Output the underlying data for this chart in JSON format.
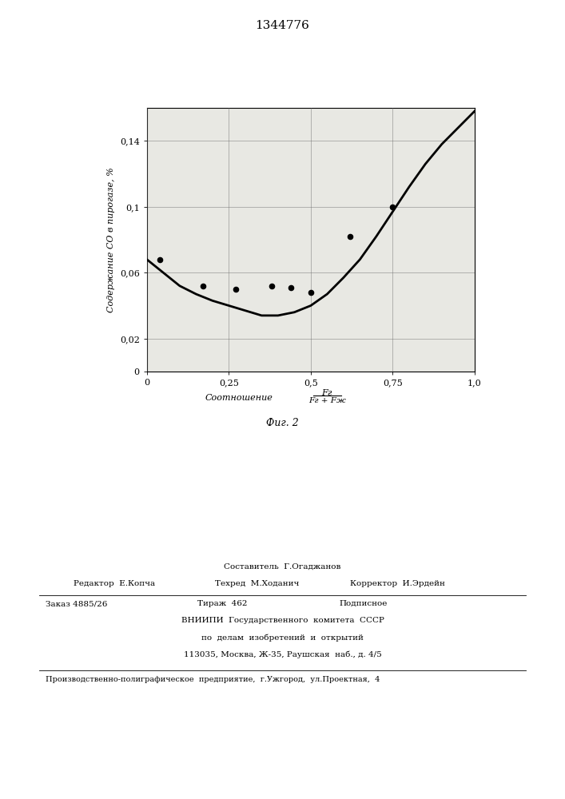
{
  "title": "1344776",
  "fig_caption": "Фиг. 2",
  "xlabel_word": "Соотношение",
  "xlabel_fraction_top": "Fг",
  "xlabel_fraction_bot": "Fг + Fж",
  "ylabel": "Содержание СО в пирогазе, %",
  "xlim": [
    0,
    1.0
  ],
  "ylim": [
    0,
    0.16
  ],
  "xticks": [
    0,
    0.25,
    0.5,
    0.75,
    1.0
  ],
  "xtick_labels": [
    "0",
    "0,25",
    "0,5",
    "0,75",
    "1,0"
  ],
  "yticks": [
    0,
    0.02,
    0.06,
    0.1,
    0.14
  ],
  "ytick_labels": [
    "0",
    "0,02",
    "0,06",
    "0,1",
    "0,14"
  ],
  "curve_x": [
    0.0,
    0.05,
    0.1,
    0.15,
    0.2,
    0.25,
    0.3,
    0.35,
    0.4,
    0.45,
    0.5,
    0.55,
    0.6,
    0.65,
    0.7,
    0.75,
    0.8,
    0.85,
    0.9,
    0.95,
    1.0
  ],
  "curve_y": [
    0.068,
    0.06,
    0.052,
    0.047,
    0.043,
    0.04,
    0.037,
    0.034,
    0.034,
    0.036,
    0.04,
    0.047,
    0.057,
    0.068,
    0.082,
    0.097,
    0.112,
    0.126,
    0.138,
    0.148,
    0.158
  ],
  "scatter_x": [
    0.04,
    0.17,
    0.27,
    0.38,
    0.44,
    0.5,
    0.62,
    0.75
  ],
  "scatter_y": [
    0.068,
    0.052,
    0.05,
    0.052,
    0.051,
    0.048,
    0.082,
    0.1
  ],
  "plot_bg": "#e8e8e3",
  "curve_color": "#000000",
  "scatter_color": "#000000",
  "grid_color": "#666666",
  "footer_col1_line1": "Редактор  Е.Копча",
  "footer_col2_line1": "Составитель  Г.Огаджанов",
  "footer_col2_line2": "Техред  М.Ходанич",
  "footer_col3_line2": "Корректор  И.Эрдейн",
  "footer_order": "Заказ 4885/26",
  "footer_tirazh": "Тираж  462",
  "footer_podp": "Подписное",
  "footer_vniiipi": "ВНИИПИ  Государственного  комитета  СССР",
  "footer_podel": "по  делам  изобретений  и  открытий",
  "footer_addr": "113035, Москва, Ж-35, Раушская  наб., д. 4/5",
  "footer_last": "Производственно-полиграфическое  предприятие,  г.Ужгород,  ул.Проектная,  4"
}
